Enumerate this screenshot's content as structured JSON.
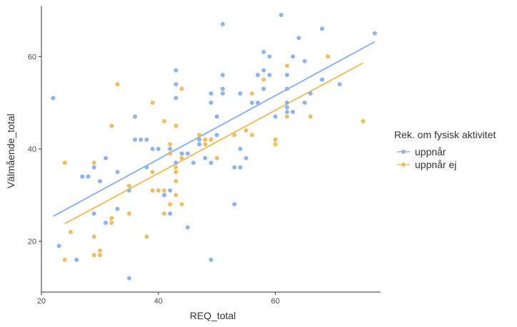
{
  "chart_data": {
    "type": "scatter",
    "xlabel": "REQ_total",
    "ylabel": "Välmående_total",
    "xlim": [
      20,
      78
    ],
    "ylim": [
      9,
      71
    ],
    "x_ticks": [
      20,
      40,
      60
    ],
    "y_ticks": [
      20,
      40,
      60
    ],
    "grid": false,
    "legend": {
      "title": "Rek. om fysisk aktivitet",
      "position": "right"
    },
    "series": [
      {
        "name": "uppnår",
        "color": "#8eb4ec",
        "points": [
          [
            22,
            51
          ],
          [
            23,
            19
          ],
          [
            26,
            16
          ],
          [
            27,
            34
          ],
          [
            28,
            34
          ],
          [
            29,
            26
          ],
          [
            29,
            36
          ],
          [
            30,
            33
          ],
          [
            31,
            38
          ],
          [
            31,
            24
          ],
          [
            33,
            27
          ],
          [
            33,
            35
          ],
          [
            35,
            12
          ],
          [
            35,
            31
          ],
          [
            36,
            47
          ],
          [
            36,
            42
          ],
          [
            37,
            42
          ],
          [
            38,
            42
          ],
          [
            38,
            36
          ],
          [
            39,
            40
          ],
          [
            40,
            40
          ],
          [
            41,
            30
          ],
          [
            42,
            31
          ],
          [
            42,
            26
          ],
          [
            42,
            40
          ],
          [
            42,
            39
          ],
          [
            43,
            57
          ],
          [
            43,
            54
          ],
          [
            43,
            51
          ],
          [
            43,
            37
          ],
          [
            44,
            39
          ],
          [
            45,
            39
          ],
          [
            45,
            23
          ],
          [
            46,
            37
          ],
          [
            47,
            42
          ],
          [
            47,
            41
          ],
          [
            48,
            38
          ],
          [
            49,
            52
          ],
          [
            49,
            50
          ],
          [
            49,
            42
          ],
          [
            49,
            37
          ],
          [
            49,
            16
          ],
          [
            50,
            47
          ],
          [
            50,
            43
          ],
          [
            51,
            67
          ],
          [
            51,
            56
          ],
          [
            51,
            53
          ],
          [
            51,
            52
          ],
          [
            53,
            36
          ],
          [
            53,
            28
          ],
          [
            54,
            40
          ],
          [
            54,
            36
          ],
          [
            54,
            52
          ],
          [
            55,
            38
          ],
          [
            56,
            50
          ],
          [
            57,
            56
          ],
          [
            57,
            50
          ],
          [
            58,
            61
          ],
          [
            58,
            57
          ],
          [
            58,
            53
          ],
          [
            59,
            60
          ],
          [
            59,
            56
          ],
          [
            60,
            47
          ],
          [
            60,
            42
          ],
          [
            61,
            69
          ],
          [
            62,
            56
          ],
          [
            62,
            53
          ],
          [
            62,
            50
          ],
          [
            62,
            49
          ],
          [
            62,
            48
          ],
          [
            63,
            60
          ],
          [
            63,
            48
          ],
          [
            64,
            64
          ],
          [
            65,
            59
          ],
          [
            65,
            50
          ],
          [
            66,
            52
          ],
          [
            68,
            66
          ],
          [
            68,
            55
          ],
          [
            71,
            54
          ],
          [
            77,
            65
          ]
        ],
        "trend": [
          [
            22,
            25.4
          ],
          [
            77,
            63.2
          ]
        ]
      },
      {
        "name": "uppnår ej",
        "color": "#efbf5f",
        "points": [
          [
            24,
            37
          ],
          [
            24,
            16
          ],
          [
            25,
            22
          ],
          [
            29,
            37
          ],
          [
            29,
            21
          ],
          [
            29,
            17
          ],
          [
            30,
            18
          ],
          [
            30,
            17
          ],
          [
            32,
            25
          ],
          [
            32,
            24
          ],
          [
            32,
            45
          ],
          [
            33,
            54
          ],
          [
            35,
            32
          ],
          [
            35,
            26
          ],
          [
            38,
            21
          ],
          [
            39,
            50
          ],
          [
            39,
            35
          ],
          [
            39,
            31
          ],
          [
            40,
            31
          ],
          [
            41,
            46
          ],
          [
            41,
            31
          ],
          [
            41,
            26
          ],
          [
            42,
            41
          ],
          [
            42,
            39
          ],
          [
            42,
            28
          ],
          [
            43,
            45
          ],
          [
            43,
            36
          ],
          [
            43,
            35
          ],
          [
            43,
            33
          ],
          [
            43,
            30
          ],
          [
            44,
            53
          ],
          [
            44,
            38
          ],
          [
            44,
            28
          ],
          [
            47,
            43
          ],
          [
            48,
            42
          ],
          [
            48,
            41
          ],
          [
            49,
            42
          ],
          [
            50,
            38
          ],
          [
            53,
            43
          ],
          [
            55,
            44
          ],
          [
            56,
            52
          ],
          [
            56,
            43
          ],
          [
            58,
            55
          ],
          [
            60,
            42
          ],
          [
            60,
            41
          ],
          [
            62,
            58
          ],
          [
            62,
            47
          ],
          [
            66,
            47
          ],
          [
            69,
            60
          ],
          [
            75,
            46
          ]
        ],
        "trend": [
          [
            24,
            23.8
          ],
          [
            75,
            58.6
          ]
        ]
      }
    ]
  }
}
